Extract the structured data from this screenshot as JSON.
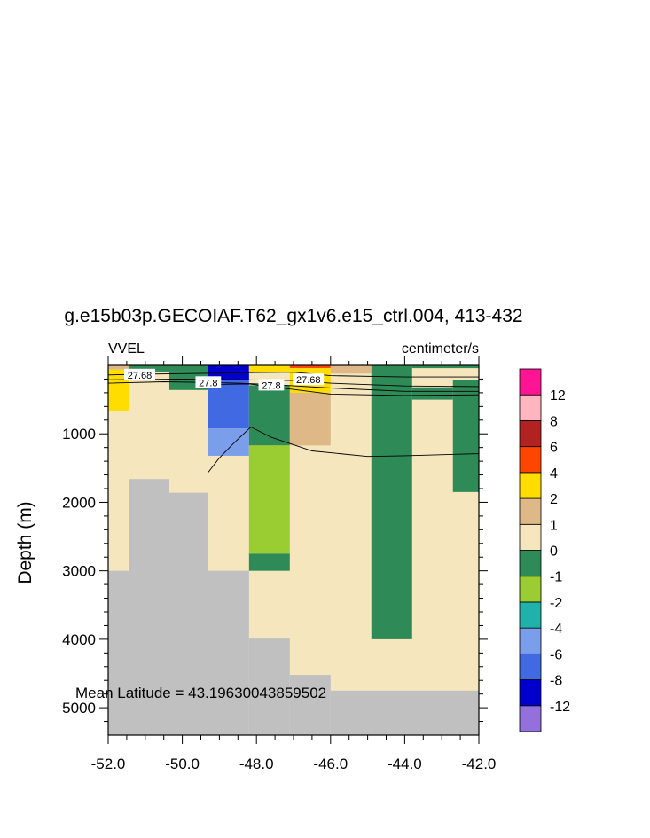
{
  "chart_data": {
    "type": "heatmap",
    "title": "g.e15b03p.GECOIAF.T62_gx1v6.e15_ctrl.004, 413-432",
    "left_label": "VVEL",
    "right_label": "centimeter/s",
    "ylabel": "Depth (m)",
    "xlabel": "",
    "annotation": "Mean Latitude = 43.19630043859502",
    "xlim": [
      -52.0,
      -42.0
    ],
    "ylim": [
      5400,
      0
    ],
    "y_reversed": true,
    "x_ticks": [
      -52.0,
      -50.0,
      -48.0,
      -46.0,
      -44.0,
      -42.0
    ],
    "x_tick_labels": [
      "-52.0",
      "-50.0",
      "-48.0",
      "-46.0",
      "-44.0",
      "-42.0"
    ],
    "y_ticks": [
      1000,
      2000,
      3000,
      4000,
      5000
    ],
    "y_tick_labels": [
      "1000",
      "2000",
      "3000",
      "4000",
      "5000"
    ],
    "colorbar": {
      "bins": [
        {
          "color": "#9370DB"
        },
        {
          "color": "#0000CD"
        },
        {
          "color": "#4169E1"
        },
        {
          "color": "#7B9EEB"
        },
        {
          "color": "#20B2AA"
        },
        {
          "color": "#9ACD32"
        },
        {
          "color": "#2E8B57"
        },
        {
          "color": "#F5E6BE"
        },
        {
          "color": "#DEB887"
        },
        {
          "color": "#FFDD00"
        },
        {
          "color": "#FF4500"
        },
        {
          "color": "#B22222"
        },
        {
          "color": "#FFB6C1"
        },
        {
          "color": "#FF1493"
        }
      ],
      "labels": [
        "-12",
        "-8",
        "-6",
        "-4",
        "-2",
        "-1",
        "0",
        "1",
        "2",
        "4",
        "6",
        "8",
        "12"
      ]
    },
    "land_color": "#C0C0C0",
    "background_color": "#F5E6BE",
    "cells": [
      {
        "x0": -52.0,
        "x1": -51.45,
        "d0": 0,
        "d1": 60,
        "color": "#DEB887"
      },
      {
        "x0": -52.0,
        "x1": -51.45,
        "d0": 60,
        "d1": 660,
        "color": "#FFDD00"
      },
      {
        "x0": -51.45,
        "x1": -49.3,
        "d0": 0,
        "d1": 90,
        "color": "#2E8B57"
      },
      {
        "x0": -50.35,
        "x1": -49.3,
        "d0": 90,
        "d1": 360,
        "color": "#2E8B57"
      },
      {
        "x0": -49.3,
        "x1": -48.2,
        "d0": 0,
        "d1": 220,
        "color": "#0000CD"
      },
      {
        "x0": -49.3,
        "x1": -48.2,
        "d0": 220,
        "d1": 920,
        "color": "#4169E1"
      },
      {
        "x0": -49.3,
        "x1": -48.2,
        "d0": 920,
        "d1": 1320,
        "color": "#7B9EEB"
      },
      {
        "x0": -48.2,
        "x1": -47.1,
        "d0": 0,
        "d1": 90,
        "color": "#FFDD00"
      },
      {
        "x0": -48.2,
        "x1": -47.1,
        "d0": 290,
        "d1": 1170,
        "color": "#2E8B57"
      },
      {
        "x0": -48.2,
        "x1": -47.1,
        "d0": 1170,
        "d1": 2750,
        "color": "#9ACD32"
      },
      {
        "x0": -48.2,
        "x1": -47.1,
        "d0": 2750,
        "d1": 3000,
        "color": "#2E8B57"
      },
      {
        "x0": -47.1,
        "x1": -46.0,
        "d0": 0,
        "d1": 40,
        "color": "#FF4500"
      },
      {
        "x0": -47.1,
        "x1": -46.0,
        "d0": 40,
        "d1": 400,
        "color": "#FFDD00"
      },
      {
        "x0": -47.1,
        "x1": -46.0,
        "d0": 400,
        "d1": 1170,
        "color": "#DEB887"
      },
      {
        "x0": -46.0,
        "x1": -44.9,
        "d0": 0,
        "d1": 120,
        "color": "#DEB887"
      },
      {
        "x0": -44.9,
        "x1": -43.8,
        "d0": 0,
        "d1": 4000,
        "color": "#2E8B57"
      },
      {
        "x0": -43.8,
        "x1": -42.0,
        "d0": 0,
        "d1": 40,
        "color": "#2E8B57"
      },
      {
        "x0": -43.8,
        "x1": -42.7,
        "d0": 320,
        "d1": 500,
        "color": "#2E8B57"
      },
      {
        "x0": -42.7,
        "x1": -42.0,
        "d0": 220,
        "d1": 1850,
        "color": "#2E8B57"
      }
    ],
    "land": [
      {
        "x0": -52.0,
        "x1": -51.45,
        "d0": 3000,
        "d1": 5400
      },
      {
        "x0": -51.45,
        "x1": -50.35,
        "d0": 1660,
        "d1": 5400
      },
      {
        "x0": -50.35,
        "x1": -49.3,
        "d0": 1860,
        "d1": 5400
      },
      {
        "x0": -49.3,
        "x1": -48.2,
        "d0": 3000,
        "d1": 5400
      },
      {
        "x0": -48.2,
        "x1": -47.1,
        "d0": 3990,
        "d1": 5400
      },
      {
        "x0": -47.1,
        "x1": -46.0,
        "d0": 4520,
        "d1": 5400
      },
      {
        "x0": -46.0,
        "x1": -42.0,
        "d0": 4750,
        "d1": 5400
      }
    ],
    "contours": [
      {
        "label": "27.68",
        "label_at": [
          -51.15,
          140
        ],
        "points": [
          [
            -52.0,
            140
          ],
          [
            -51.2,
            130
          ],
          [
            -50.0,
            120
          ],
          [
            -48.0,
            105
          ],
          [
            -47.0,
            100
          ],
          [
            -46.0,
            150
          ],
          [
            -44.0,
            170
          ],
          [
            -42.0,
            170
          ]
        ]
      },
      {
        "label": "27.68",
        "label_at": [
          -46.6,
          210
        ],
        "points": [
          [
            -52.0,
            210
          ],
          [
            -50.0,
            200
          ],
          [
            -48.5,
            210
          ],
          [
            -47.0,
            220
          ],
          [
            -46.0,
            260
          ],
          [
            -44.0,
            300
          ],
          [
            -42.0,
            310
          ]
        ]
      },
      {
        "label": "27.8",
        "label_at": [
          -49.3,
          250
        ],
        "points": [
          [
            -52.0,
            260
          ],
          [
            -50.5,
            240
          ],
          [
            -49.3,
            250
          ],
          [
            -48.5,
            260
          ],
          [
            -47.6,
            280
          ],
          [
            -46.0,
            330
          ],
          [
            -44.0,
            380
          ],
          [
            -42.0,
            380
          ]
        ]
      },
      {
        "label": "27.8",
        "label_at": [
          -47.6,
          290
        ],
        "points": [
          [
            -49.3,
            280
          ],
          [
            -48.2,
            270
          ],
          [
            -47.6,
            310
          ],
          [
            -46.0,
            420
          ],
          [
            -44.0,
            440
          ],
          [
            -42.0,
            430
          ]
        ]
      },
      {
        "label": "",
        "label_at": null,
        "points": [
          [
            -49.3,
            1560
          ],
          [
            -49.0,
            1350
          ],
          [
            -48.6,
            1130
          ],
          [
            -48.15,
            900
          ],
          [
            -47.6,
            1050
          ],
          [
            -46.5,
            1250
          ],
          [
            -45.0,
            1330
          ],
          [
            -44.0,
            1320
          ],
          [
            -42.0,
            1290
          ]
        ]
      }
    ]
  }
}
